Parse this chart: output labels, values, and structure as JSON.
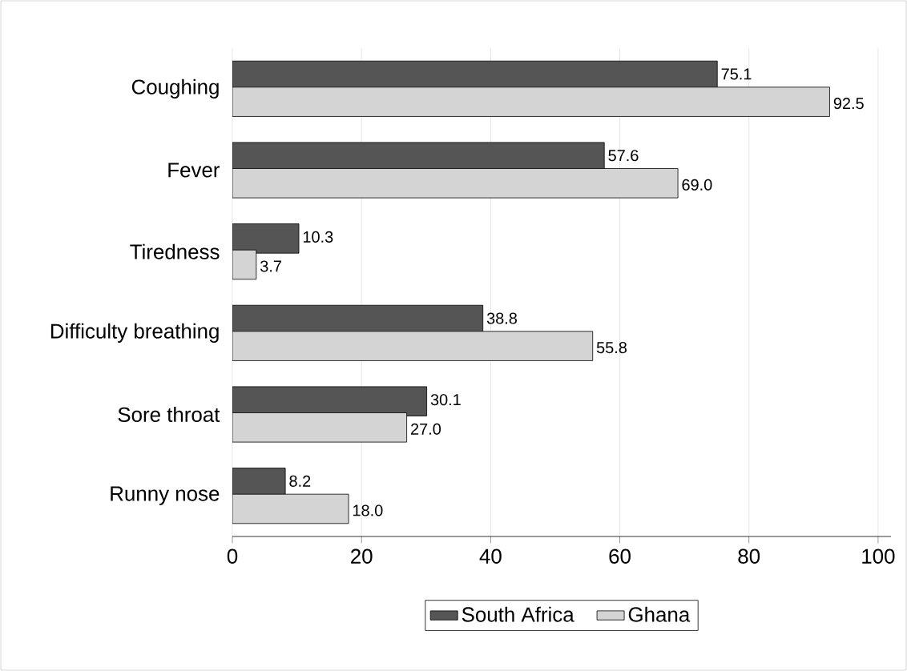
{
  "chart_data": {
    "type": "bar",
    "orientation": "horizontal",
    "categories": [
      "Coughing",
      "Fever",
      "Tiredness",
      "Difficulty breathing",
      "Sore throat",
      "Runny nose"
    ],
    "series": [
      {
        "name": "South Africa",
        "color": "#555555",
        "values": [
          75.1,
          57.6,
          10.3,
          38.8,
          30.1,
          8.2
        ],
        "value_labels": [
          "75.1",
          "57.6",
          "10.3",
          "38.8",
          "30.1",
          "8.2"
        ]
      },
      {
        "name": "Ghana",
        "color": "#d4d4d4",
        "values": [
          92.5,
          69.0,
          3.7,
          55.8,
          27.0,
          18.0
        ],
        "value_labels": [
          "92.5",
          "69.0",
          "3.7",
          "55.8",
          "27.0",
          "18.0"
        ]
      }
    ],
    "xlim": [
      0,
      102
    ],
    "xticks": [
      0,
      20,
      40,
      60,
      80,
      100
    ],
    "grid": "x",
    "legend": "bottom"
  }
}
